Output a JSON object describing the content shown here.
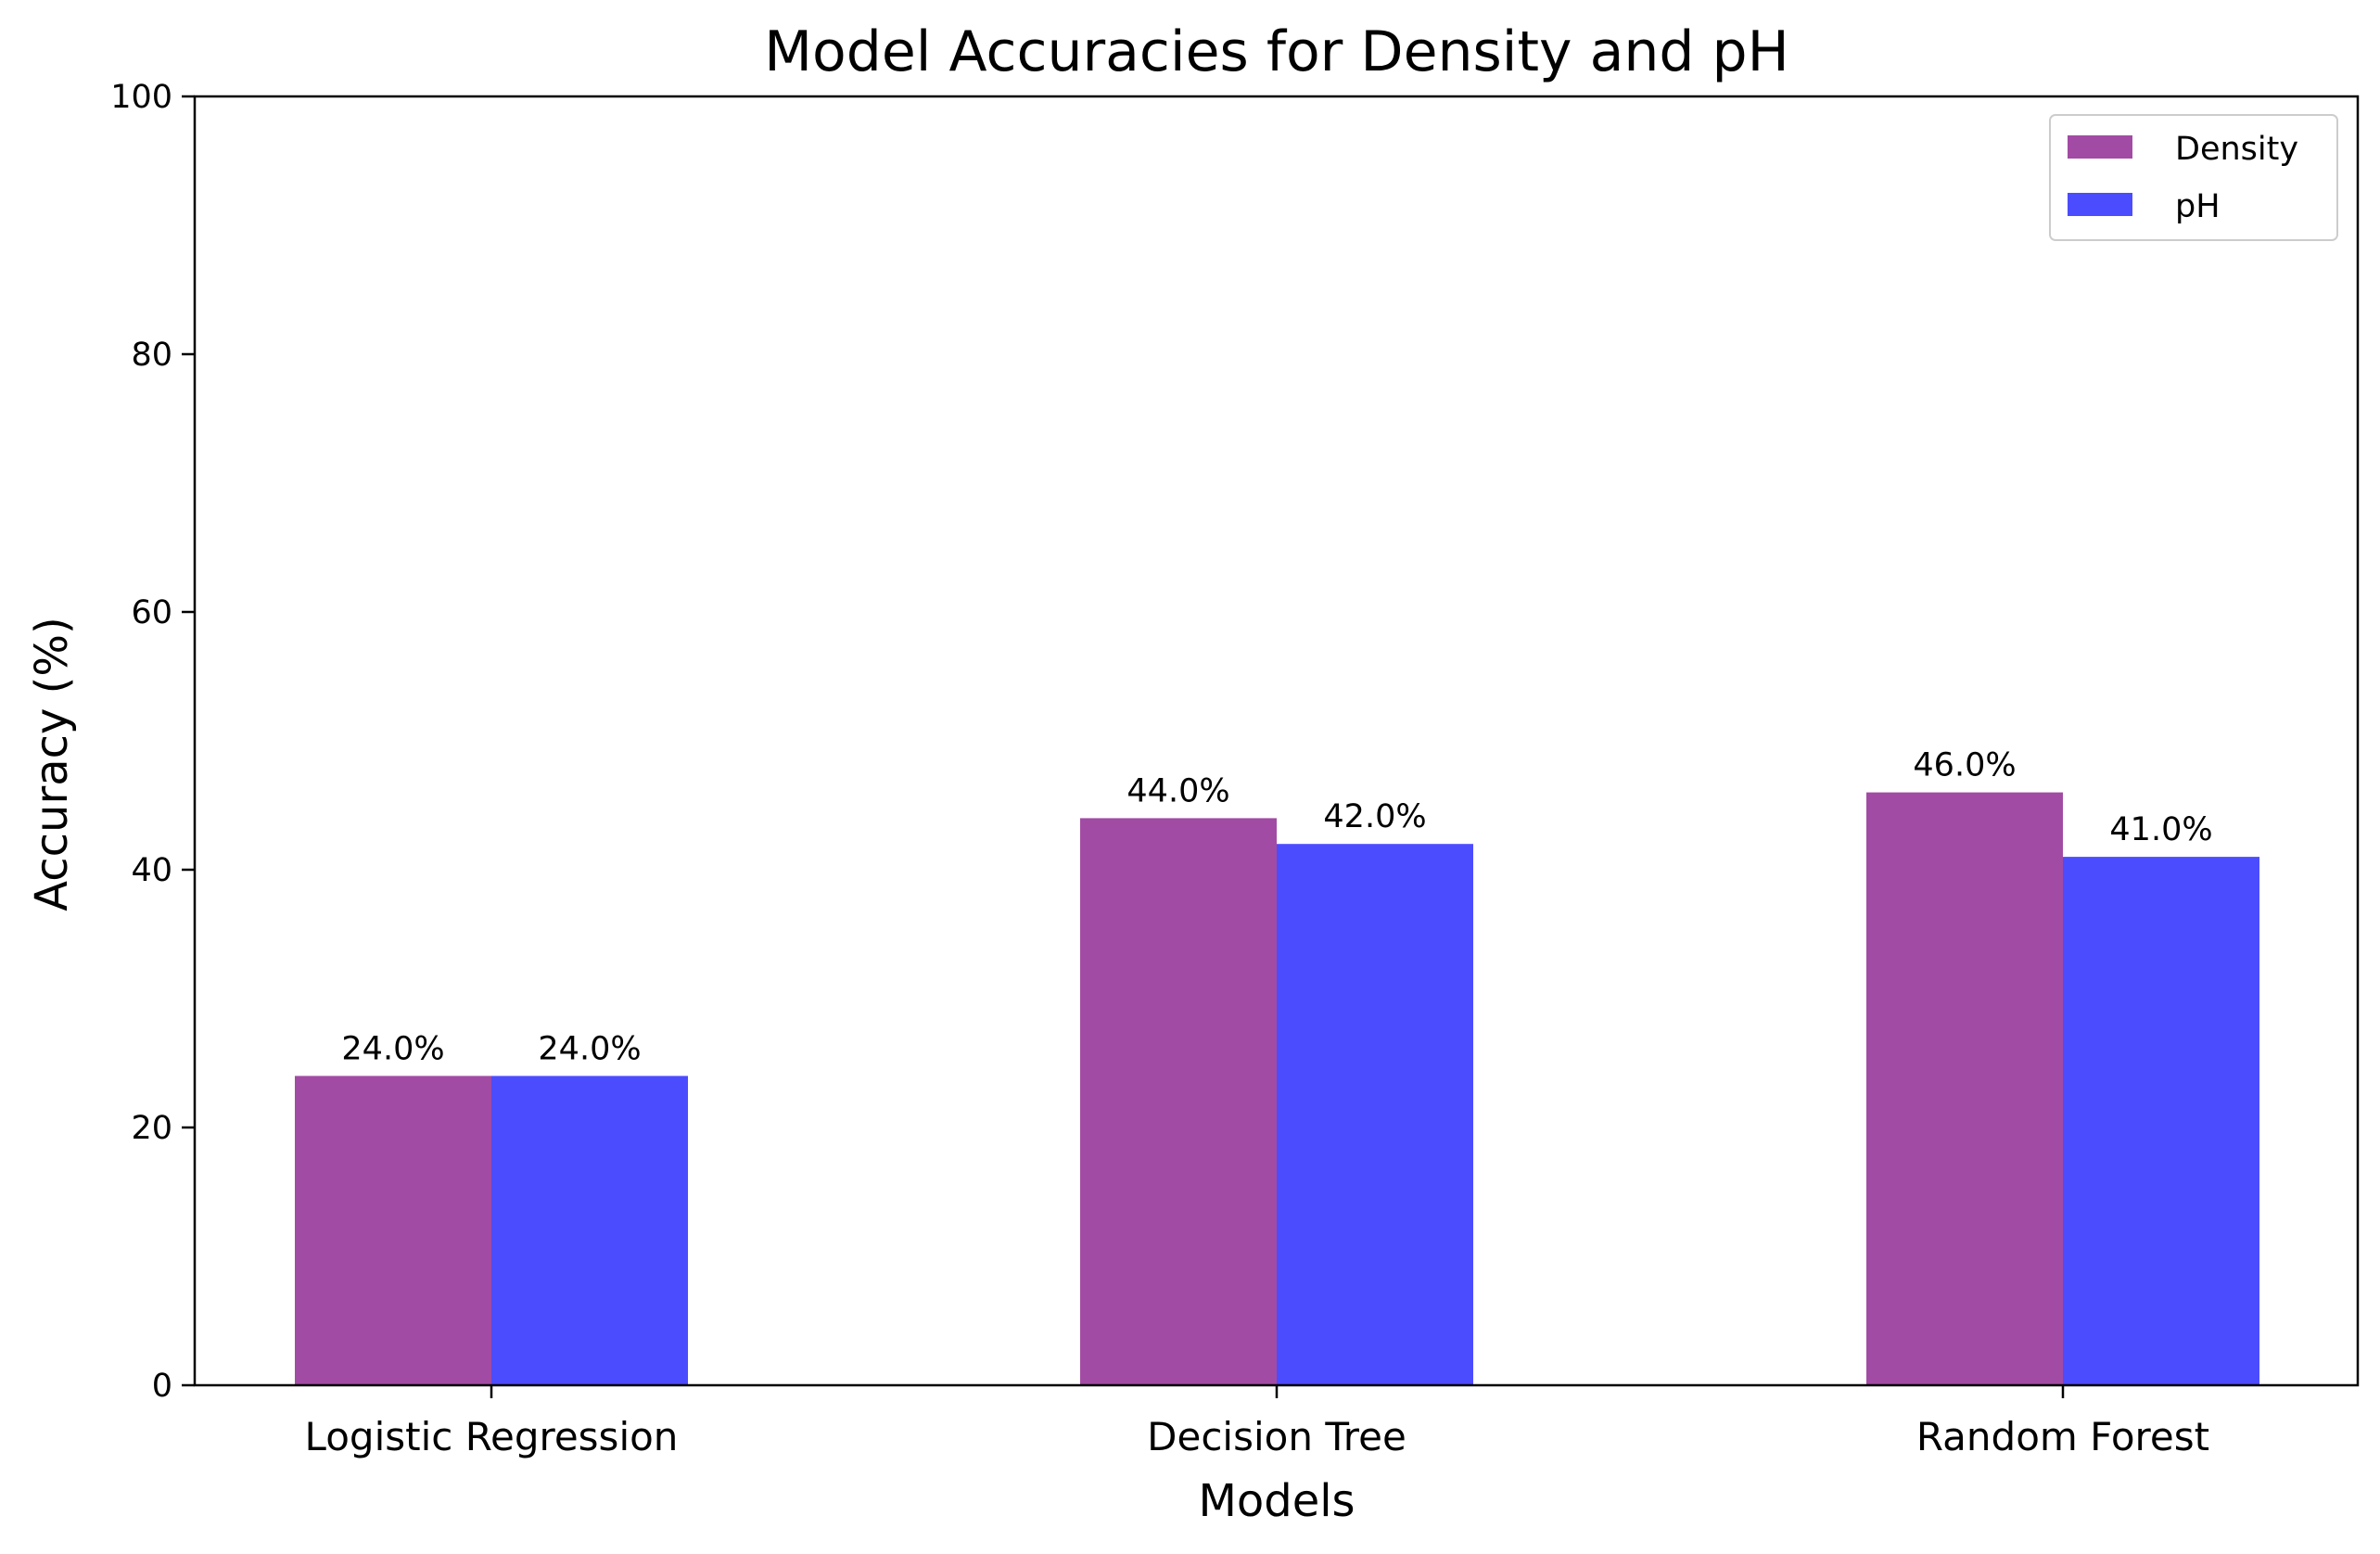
{
  "chart_data": {
    "type": "bar",
    "title": "Model Accuracies for Density and pH",
    "xlabel": "Models",
    "ylabel": "Accuracy (%)",
    "categories": [
      "Logistic Regression",
      "Decision Tree",
      "Random Forest"
    ],
    "series": [
      {
        "name": "Density",
        "values": [
          24.0,
          44.0,
          46.0
        ],
        "color": "#a24ba4",
        "labels": [
          "24.0%",
          "44.0%",
          "46.0%"
        ]
      },
      {
        "name": "pH",
        "values": [
          24.0,
          42.0,
          41.0
        ],
        "color": "#4c4cff",
        "labels": [
          "24.0%",
          "42.0%",
          "41.0%"
        ]
      }
    ],
    "ylim": [
      0,
      100
    ],
    "yticks": [
      0,
      20,
      40,
      60,
      80,
      100
    ],
    "ytick_labels": [
      "0",
      "20",
      "40",
      "60",
      "80",
      "100"
    ],
    "grid": false,
    "legend": "top-right"
  }
}
